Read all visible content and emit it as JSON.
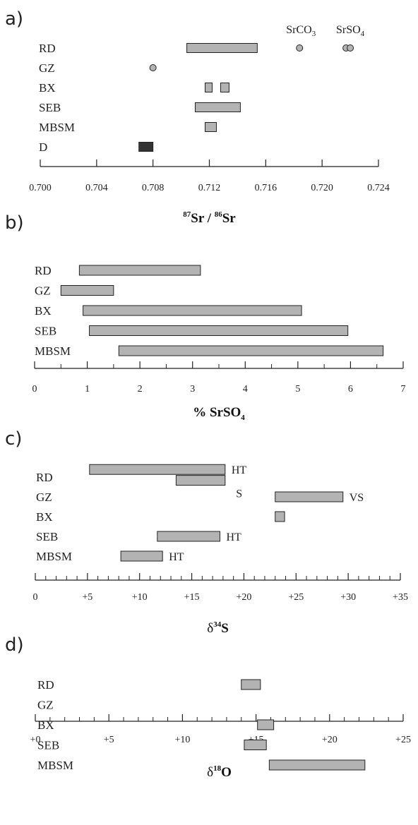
{
  "colors": {
    "bar": "#b3b3b3",
    "dark_bar": "#333333",
    "stroke": "#222222",
    "point": "#b3b3b3"
  },
  "chart_data": [
    {
      "panel": "a)",
      "type": "range",
      "xlabel_main": "Sr / ",
      "xlabel_sup1": "87",
      "xlabel_sup2": "86",
      "xlabel_tail": "Sr",
      "xlim": [
        0.7,
        0.724
      ],
      "ticks": [
        "0.700",
        "0.704",
        "0.708",
        "0.712",
        "0.716",
        "0.720",
        "0.724"
      ],
      "categories": [
        "RD",
        "GZ",
        "BX",
        "SEB",
        "MBSM",
        "D"
      ],
      "ranges": [
        {
          "cat": "RD",
          "from": 0.7104,
          "to": 0.7154
        },
        {
          "cat": "BX",
          "from": 0.7117,
          "to": 0.7122
        },
        {
          "cat": "BX",
          "from": 0.7128,
          "to": 0.7134
        },
        {
          "cat": "SEB",
          "from": 0.711,
          "to": 0.7142
        },
        {
          "cat": "MBSM",
          "from": 0.7117,
          "to": 0.7125
        },
        {
          "cat": "D",
          "from": 0.707,
          "to": 0.708,
          "dark": true
        }
      ],
      "points": [
        {
          "cat": "RD",
          "x": 0.7184
        },
        {
          "cat": "RD",
          "x": 0.7217
        },
        {
          "cat": "RD",
          "x": 0.722
        },
        {
          "cat": "GZ",
          "x": 0.708
        }
      ],
      "annotations": [
        {
          "base": "SrCO",
          "sub": "3",
          "x": 0.7185
        },
        {
          "base": "SrSO",
          "sub": "4",
          "x": 0.722
        }
      ]
    },
    {
      "panel": "b)",
      "type": "range",
      "xlabel_main": "% SrSO",
      "xlabel_sub": "4",
      "xlim": [
        0,
        7
      ],
      "ticks": [
        "0",
        "1",
        "2",
        "3",
        "4",
        "5",
        "6",
        "7"
      ],
      "categories": [
        "RD",
        "GZ",
        "BX",
        "SEB",
        "MBSM"
      ],
      "ranges": [
        {
          "cat": "RD",
          "from": 0.85,
          "to": 3.15
        },
        {
          "cat": "GZ",
          "from": 0.5,
          "to": 1.5
        },
        {
          "cat": "BX",
          "from": 0.92,
          "to": 5.07
        },
        {
          "cat": "SEB",
          "from": 1.04,
          "to": 5.95
        },
        {
          "cat": "MBSM",
          "from": 1.6,
          "to": 6.62
        }
      ]
    },
    {
      "panel": "c)",
      "type": "range",
      "xlabel_main": "δ",
      "xlabel_sup": "34",
      "xlabel_tail": "S",
      "xlim": [
        0,
        35
      ],
      "ticks": [
        "0",
        "+5",
        "+10",
        "+15",
        "+20",
        "+25",
        "+30",
        "+35"
      ],
      "categories": [
        "RD",
        "GZ",
        "BX",
        "SEB",
        "MBSM"
      ],
      "ranges": [
        {
          "cat": "RD",
          "from": 5.2,
          "to": 18.2,
          "label": "HT",
          "row_offset": -0.7
        },
        {
          "cat": "RD",
          "from": 13.5,
          "to": 18.2,
          "label": "S",
          "row_offset": 0.3,
          "label_below": true
        },
        {
          "cat": "GZ",
          "from": 23.0,
          "to": 29.5,
          "label": "VS"
        },
        {
          "cat": "BX",
          "from": 23.0,
          "to": 23.9
        },
        {
          "cat": "SEB",
          "from": 11.7,
          "to": 17.7,
          "label": "HT"
        },
        {
          "cat": "MBSM",
          "from": 8.2,
          "to": 12.2,
          "label": "HT"
        }
      ]
    },
    {
      "panel": "d)",
      "type": "range",
      "xlabel_main": "δ",
      "xlabel_sup": "18",
      "xlabel_tail": "O",
      "xlim": [
        0,
        25
      ],
      "ticks": [
        "+0",
        "+5",
        "+10",
        "+15",
        "+20",
        "+25"
      ],
      "categories": [
        "RD",
        "GZ",
        "BX",
        "SEB",
        "MBSM"
      ],
      "ranges": [
        {
          "cat": "RD",
          "from": 14.0,
          "to": 15.3
        },
        {
          "cat": "BX",
          "from": 15.1,
          "to": 16.2
        },
        {
          "cat": "SEB",
          "from": 14.2,
          "to": 15.7
        },
        {
          "cat": "MBSM",
          "from": 15.9,
          "to": 22.4
        }
      ]
    }
  ]
}
